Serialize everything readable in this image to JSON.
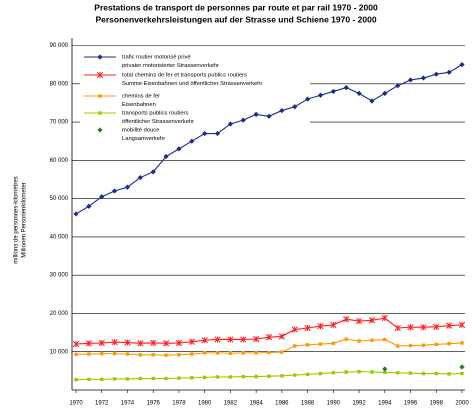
{
  "chart_data": {
    "type": "line",
    "title": [
      "Prestations de transport de personnes par route et par rail 1970 - 2000",
      "Personenverkehrsleistungen auf der Strasse und Schiene 1970 - 2000"
    ],
    "y_label": [
      "millions de personnes-kilomètres",
      "Millionen Personenkilometer"
    ],
    "x": [
      1970,
      1971,
      1972,
      1973,
      1974,
      1975,
      1976,
      1977,
      1978,
      1979,
      1980,
      1981,
      1982,
      1983,
      1984,
      1985,
      1986,
      1987,
      1988,
      1989,
      1990,
      1991,
      1992,
      1993,
      1994,
      1995,
      1996,
      1997,
      1998,
      1999,
      2000
    ],
    "xlim": [
      1970,
      2000
    ],
    "xticks": [
      1970,
      1972,
      1974,
      1976,
      1978,
      1980,
      1982,
      1984,
      1986,
      1988,
      1990,
      1992,
      1994,
      1996,
      1998,
      2000
    ],
    "ylim": [
      0,
      90000
    ],
    "yticks": [
      {
        "value": 10000,
        "label": "10 000"
      },
      {
        "value": 20000,
        "label": "20 000"
      },
      {
        "value": 30000,
        "label": "30 000"
      },
      {
        "value": 40000,
        "label": "40 000"
      },
      {
        "value": 50000,
        "label": "50 000"
      },
      {
        "value": 60000,
        "label": "60 000"
      },
      {
        "value": 70000,
        "label": "70 000"
      },
      {
        "value": 80000,
        "label": "80 000"
      },
      {
        "value": 90000,
        "label": "90 000"
      }
    ],
    "grid": true,
    "legend": "upper left",
    "series": [
      {
        "name": [
          "trafic routier motorisé privé",
          "privater motorisierter Strassenverkehr"
        ],
        "color": "#1f2a8a",
        "marker": "diamond",
        "line": true,
        "values": [
          46000,
          48000,
          50500,
          52000,
          53000,
          55500,
          57000,
          61000,
          63000,
          65000,
          67000,
          67000,
          69500,
          70500,
          72000,
          71500,
          73000,
          74000,
          76000,
          77000,
          78000,
          79000,
          77500,
          75500,
          77500,
          79500,
          81000,
          81500,
          82500,
          83000,
          85000
        ]
      },
      {
        "name": [
          "total chemins de fer et transports publics routiers",
          "Summe Eisenbahnen und öffentlicher Strassenverkehr"
        ],
        "color": "#ff2020",
        "marker": "asterisk",
        "line": true,
        "values": [
          12000,
          12200,
          12300,
          12500,
          12400,
          12200,
          12300,
          12200,
          12300,
          12600,
          13000,
          13200,
          13200,
          13200,
          13300,
          13800,
          14000,
          15800,
          16200,
          16700,
          17000,
          18500,
          18000,
          18200,
          18800,
          16200,
          16400,
          16400,
          16500,
          16800,
          17000
        ]
      },
      {
        "name": [
          "chemins de fer",
          "Eisenbahnen"
        ],
        "color": "#ff9900",
        "marker": "square",
        "line": true,
        "values": [
          9300,
          9400,
          9500,
          9500,
          9400,
          9200,
          9200,
          9100,
          9200,
          9400,
          9700,
          9700,
          9600,
          9700,
          9700,
          9800,
          9900,
          11500,
          11800,
          12000,
          12200,
          13300,
          12800,
          13000,
          13200,
          11500,
          11600,
          11700,
          11900,
          12100,
          12300
        ]
      },
      {
        "name": [
          "transports publics routiers",
          "öffentlicher Strassenverkehr"
        ],
        "color": "#99cc00",
        "marker": "square",
        "line": true,
        "values": [
          2700,
          2800,
          2800,
          2900,
          2900,
          3000,
          3000,
          3000,
          3100,
          3200,
          3300,
          3400,
          3400,
          3500,
          3500,
          3600,
          3700,
          3900,
          4100,
          4300,
          4500,
          4700,
          4800,
          4700,
          4600,
          4500,
          4400,
          4300,
          4300,
          4200,
          4300
        ]
      },
      {
        "name": [
          "mobilité douce",
          "Langsamverkehr"
        ],
        "color": "#2a7a2a",
        "marker": "diamond",
        "line": false,
        "values": [
          null,
          null,
          null,
          null,
          null,
          null,
          null,
          null,
          null,
          null,
          null,
          null,
          null,
          null,
          null,
          null,
          null,
          null,
          null,
          null,
          null,
          null,
          null,
          null,
          5500,
          null,
          null,
          null,
          null,
          null,
          6000
        ]
      }
    ]
  }
}
